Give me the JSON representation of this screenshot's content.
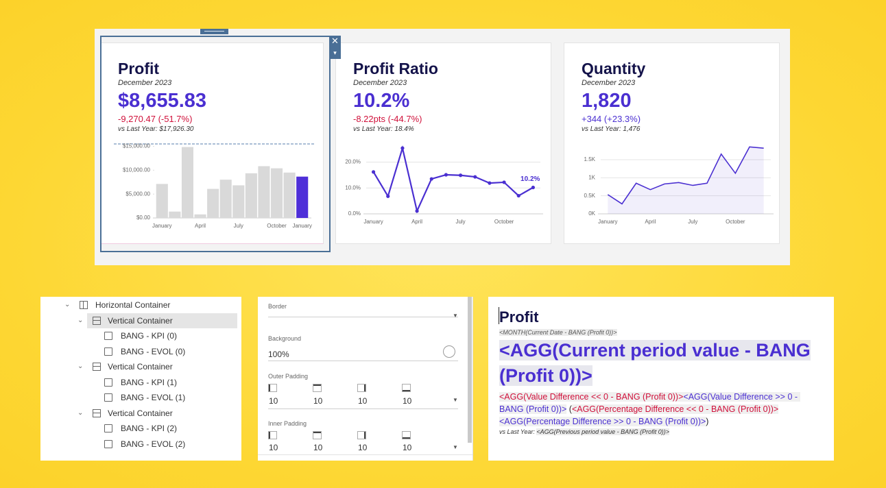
{
  "cards": [
    {
      "title": "Profit",
      "period": "December 2023",
      "value": "$8,655.83",
      "change": "-9,270.47",
      "change_pct": "(-51.7%)",
      "direction": "neg",
      "vs_last_year": "vs Last Year: $17,926.30"
    },
    {
      "title": "Profit Ratio",
      "period": "December 2023",
      "value": "10.2%",
      "change": "-8.22pts",
      "change_pct": "(-44.7%)",
      "direction": "neg",
      "vs_last_year": "vs Last Year: 18.4%"
    },
    {
      "title": "Quantity",
      "period": "December 2023",
      "value": "1,820",
      "change": "+344",
      "change_pct": "(+23.3%)",
      "direction": "pos",
      "vs_last_year": "vs Last Year: 1,476"
    }
  ],
  "chart_data": [
    {
      "type": "bar",
      "categories": [
        "January",
        null,
        null,
        "April",
        null,
        null,
        "July",
        null,
        null,
        "October",
        null,
        "January"
      ],
      "values": [
        7129,
        1337,
        14851,
        743,
        6089,
        8020,
        6832,
        9356,
        10842,
        10396,
        9505,
        8655.83
      ],
      "colors": [
        "#d9d9d9",
        "#d9d9d9",
        "#d9d9d9",
        "#d9d9d9",
        "#d9d9d9",
        "#d9d9d9",
        "#d9d9d9",
        "#d9d9d9",
        "#d9d9d9",
        "#d9d9d9",
        "#d9d9d9",
        "#4e2fd8"
      ],
      "ylim": [
        0,
        15500
      ],
      "yticks": [
        {
          "value": 0,
          "label": "$0.00"
        },
        {
          "value": 5000,
          "label": "$5,000.00"
        },
        {
          "value": 10000,
          "label": "$10,000.00"
        },
        {
          "value": 15000,
          "label": "$15,000.00"
        }
      ],
      "grid": false
    },
    {
      "type": "line",
      "categories": [
        "January",
        null,
        null,
        "April",
        null,
        null,
        "July",
        null,
        null,
        "October",
        null,
        null
      ],
      "values": [
        16.2,
        6.8,
        25.4,
        1.1,
        13.5,
        15.1,
        14.9,
        14.3,
        11.9,
        12.2,
        7.0,
        10.2
      ],
      "value_labels": [
        null,
        null,
        null,
        null,
        null,
        null,
        null,
        null,
        null,
        null,
        null,
        "10.2%"
      ],
      "color": "#4a2fd1",
      "ylim": [
        0,
        26.5
      ],
      "yticks": [
        {
          "value": 0,
          "label": "0.0%"
        },
        {
          "value": 10,
          "label": "10.0%"
        },
        {
          "value": 20,
          "label": "20.0%"
        }
      ],
      "grid": true
    },
    {
      "type": "area",
      "categories": [
        "January",
        null,
        null,
        "April",
        null,
        null,
        "July",
        null,
        null,
        "October",
        null,
        null
      ],
      "values": [
        533,
        276,
        849,
        671,
        829,
        868,
        789,
        849,
        1658,
        1125,
        1855,
        1820
      ],
      "color": "#4a2fd1",
      "ylim": [
        0,
        1900
      ],
      "yticks": [
        {
          "value": 0,
          "label": "0K"
        },
        {
          "value": 500,
          "label": "0.5K"
        },
        {
          "value": 1000,
          "label": "1K"
        },
        {
          "value": 1500,
          "label": "1.5K"
        }
      ],
      "grid": true
    }
  ],
  "tree": {
    "items": [
      {
        "label": "Horizontal Container",
        "level": 0
      },
      {
        "label": "Vertical Container",
        "level": 1,
        "selected": true
      },
      {
        "label": "BANG - KPI (0)",
        "level": 2
      },
      {
        "label": "BANG - EVOL (0)",
        "level": 2
      },
      {
        "label": "Vertical Container",
        "level": 1
      },
      {
        "label": "BANG - KPI (1)",
        "level": 2
      },
      {
        "label": "BANG - EVOL (1)",
        "level": 2
      },
      {
        "label": "Vertical Container",
        "level": 1
      },
      {
        "label": "BANG - KPI (2)",
        "level": 2
      },
      {
        "label": "BANG - EVOL (2)",
        "level": 2
      }
    ]
  },
  "format_panel": {
    "border_label": "Border",
    "background_label": "Background",
    "background_value": "100%",
    "outer_padding": {
      "label": "Outer Padding",
      "values": [
        10,
        10,
        10,
        10
      ]
    },
    "inner_padding": {
      "label": "Inner Padding",
      "values": [
        10,
        10,
        10,
        10
      ]
    }
  },
  "text_editor": {
    "title": "Profit",
    "period": "<MONTH(Current Date - BANG (Profit 0))>",
    "value": "<AGG(Current period value - BANG (Profit 0))>",
    "change_segments": [
      {
        "text": "<AGG(Value Difference << 0 - BANG (Profit 0))>",
        "color": "#d0103a"
      },
      {
        "text": "<AGG(Value Difference >> 0 - BANG (Profit 0))>",
        "color": "#4a2fd1"
      },
      {
        "text": " (",
        "color": "#222222"
      },
      {
        "text": "<AGG(Percentage Difference << 0 - BANG (Profit 0))>",
        "color": "#d0103a"
      },
      {
        "text": "<AGG(Percentage Difference >> 0 - BANG (Profit 0))>",
        "color": "#4a2fd1"
      },
      {
        "text": ")",
        "color": "#222222"
      }
    ],
    "vs_label": "vs Last Year: ",
    "vs_value": "<AGG(Previous period value - BANG (Profit 0))>"
  }
}
